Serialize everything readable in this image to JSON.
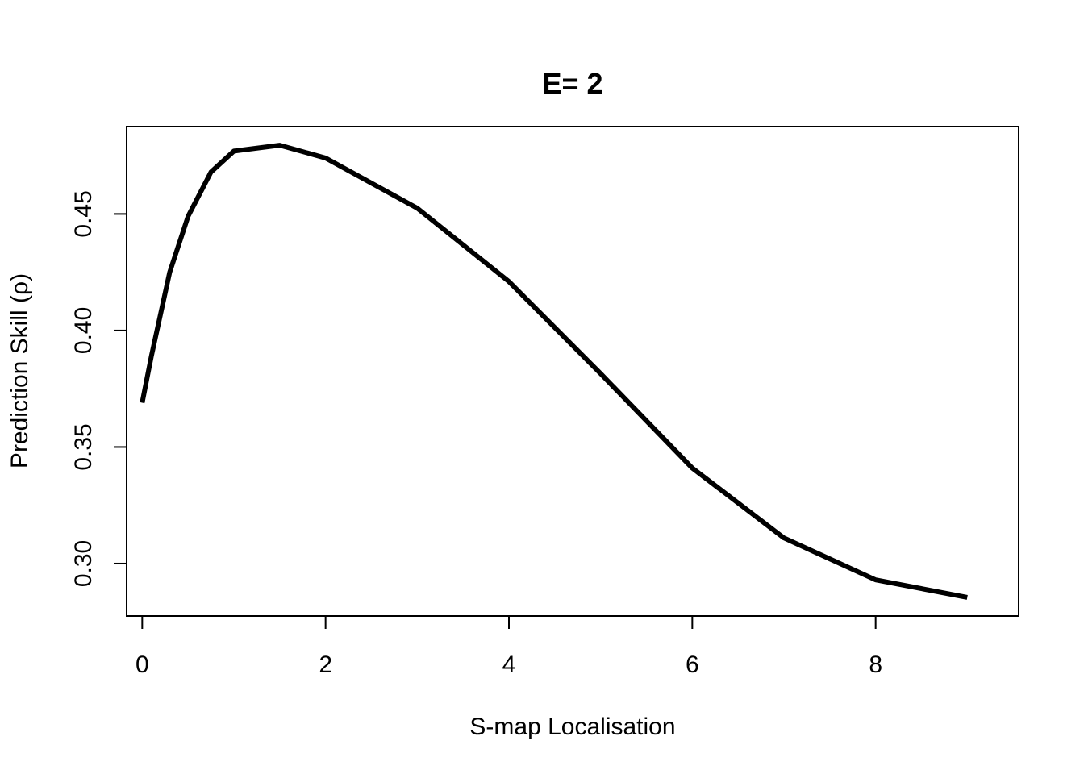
{
  "chart_data": {
    "type": "line",
    "title": "E= 2",
    "xlabel": "S-map Localisation",
    "ylabel": "Prediction Skill (ρ)",
    "xlim": [
      -0.17,
      9.56
    ],
    "ylim": [
      0.2775,
      0.4875
    ],
    "x_ticks": [
      0,
      2,
      4,
      6,
      8
    ],
    "x_tick_labels": [
      "0",
      "2",
      "4",
      "6",
      "8"
    ],
    "y_ticks": [
      0.3,
      0.35,
      0.4,
      0.45
    ],
    "y_tick_labels": [
      "0.30",
      "0.35",
      "0.40",
      "0.45"
    ],
    "grid": false,
    "legend": "none",
    "line_color": "#000000",
    "series": [
      {
        "x": [
          0,
          0.1,
          0.3,
          0.5,
          0.75,
          1,
          1.5,
          2,
          3,
          4,
          5,
          6,
          7,
          8,
          9
        ],
        "values": [
          0.369,
          0.389,
          0.425,
          0.449,
          0.468,
          0.477,
          0.4795,
          0.474,
          0.4525,
          0.421,
          0.3815,
          0.341,
          0.311,
          0.293,
          0.2855
        ]
      }
    ]
  }
}
